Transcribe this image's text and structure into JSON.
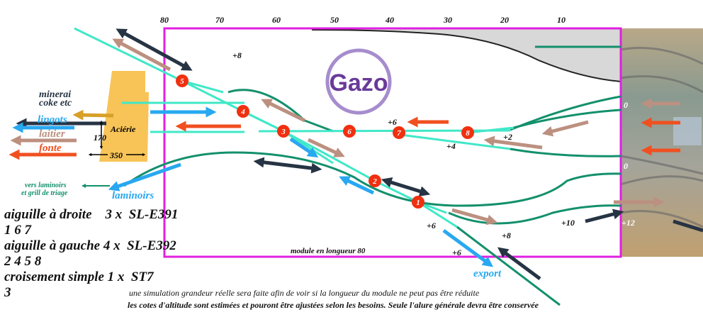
{
  "scale": [
    "80",
    "70",
    "60",
    "50",
    "40",
    "30",
    "20",
    "10"
  ],
  "logo": {
    "text": "Gazo"
  },
  "colors": {
    "frame": "#e020e0",
    "track_light": "#40e8c8",
    "track_dark": "#13906c",
    "node": "#f03010",
    "steel_block": "#f8c458",
    "minerai": "#263444",
    "lingots": "#28a8f0",
    "laitier": "#bc9080",
    "fonte": "#f05020",
    "coke_arrow": "#d8a028"
  },
  "products": {
    "minerai_line1": "minerai",
    "minerai_line2": "coke etc",
    "lingots": "lingots",
    "laitier": "laitier",
    "fonte": "fonte"
  },
  "acierie": {
    "label": "Aciérie",
    "height": "170",
    "width": "350"
  },
  "destinations": {
    "vers_laminoirs_line1": "vers laminoirs",
    "vers_laminoirs_line2": "et grill de triage",
    "laminoirs": "laminoirs",
    "export": "export"
  },
  "nodes": [
    "1",
    "2",
    "3",
    "4",
    "5",
    "6",
    "7",
    "8"
  ],
  "altitudes": {
    "a1": "+8",
    "a2": "+6",
    "a3": "+2",
    "a4": "+4",
    "a5": "0",
    "a6": "0",
    "a7": "+10",
    "a8": "+12",
    "a9": "+6",
    "a10": "+8",
    "a11": "+6"
  },
  "module_label": "module en longueur 80",
  "legend": [
    "aiguille à droite    3 x  SL-E391",
    "1 6 7",
    "aiguille à gauche 4 x  SL-E392",
    "2 4 5 8",
    "croisement simple 1 x  ST7",
    "3"
  ],
  "notes": [
    "une simulation grandeur réelle sera faite afin de voir si la longueur du module ne peut pas être réduite",
    "les cotes d'altitude sont estimées et pouront être ajustées selon les besoins. Seule l'alure générale devra être conservée"
  ]
}
